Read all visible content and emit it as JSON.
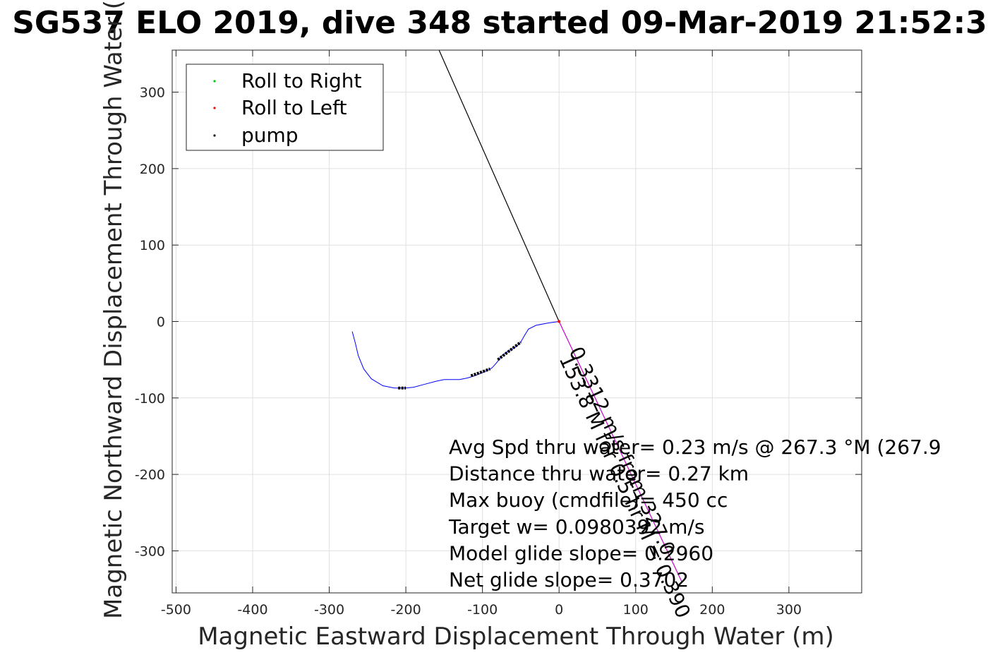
{
  "chart_data": {
    "type": "line",
    "title": "SG537 ELO 2019, dive 348 started 09-Mar-2019 21:52:3",
    "xlabel": "Magnetic Eastward Displacement Through Water (m)",
    "ylabel": "Magnetic Northward Displacement Through Water (",
    "xlim": [
      -505,
      395
    ],
    "ylim": [
      -355,
      355
    ],
    "x_ticks": [
      -500,
      -400,
      -300,
      -200,
      -100,
      0,
      100,
      200,
      300
    ],
    "y_ticks": [
      -300,
      -200,
      -100,
      0,
      100,
      200,
      300
    ],
    "x_tick_labels": [
      "-500",
      "-400",
      "-300",
      "-200",
      "-100",
      "0",
      "100",
      "200",
      "300"
    ],
    "y_tick_labels": [
      "-300",
      "-200",
      "-100",
      "0",
      "100",
      "200",
      "300"
    ],
    "grid": true,
    "legend_position": "top-left",
    "legend": [
      {
        "label": "Roll to Right",
        "color": "#00cc00"
      },
      {
        "label": "Roll to Left",
        "color": "#ff0000"
      },
      {
        "label": "pump",
        "color": "#000000"
      }
    ],
    "series": [
      {
        "name": "track",
        "color": "#0000ff",
        "x": [
          0,
          -15,
          -30,
          -40,
          -45,
          -50,
          -55,
          -65,
          -75,
          -80,
          -85,
          -88,
          -92,
          -100,
          -110,
          -120,
          -130,
          -140,
          -150,
          -160,
          -175,
          -190,
          -200,
          -215,
          -230,
          -245,
          -255,
          -262,
          -266,
          -270
        ],
        "y": [
          0,
          -2,
          -5,
          -10,
          -18,
          -27,
          -32,
          -38,
          -45,
          -52,
          -58,
          -61,
          -63,
          -67,
          -71,
          -74,
          -76,
          -76,
          -76,
          -78,
          -82,
          -86,
          -87,
          -87,
          -84,
          -75,
          -62,
          -45,
          -28,
          -13
        ]
      },
      {
        "name": "pump",
        "color": "#000000",
        "segments": [
          {
            "x": [
              -210,
              -200
            ],
            "y": [
              -87,
              -87
            ]
          },
          {
            "x": [
              -115,
              -90
            ],
            "y": [
              -71,
              -62
            ]
          },
          {
            "x": [
              -80,
              -50
            ],
            "y": [
              -50,
              -27
            ]
          }
        ]
      },
      {
        "name": "current",
        "color": "#000000",
        "x": [
          0,
          -158
        ],
        "y": [
          0,
          358
        ]
      },
      {
        "name": "heading",
        "color": "#cc00cc",
        "x": [
          0,
          160
        ],
        "y": [
          0,
          -340
        ]
      }
    ],
    "annotations": {
      "rotated_line1": "0.3312 m/s from 327.0",
      "rotated_line2": "153.8 M for 0.5 hr M = 0.390",
      "stats": [
        "Avg Spd thru water=  0.23 m/s @ 267.3 °M (267.9",
        "Distance thru water=  0.27 km",
        "Max buoy (cmdfile)= 450 cc",
        "Target w= 0.0980392 m/s",
        "Model glide slope= 0.2960",
        "Net glide slope= 0.3702"
      ]
    }
  }
}
